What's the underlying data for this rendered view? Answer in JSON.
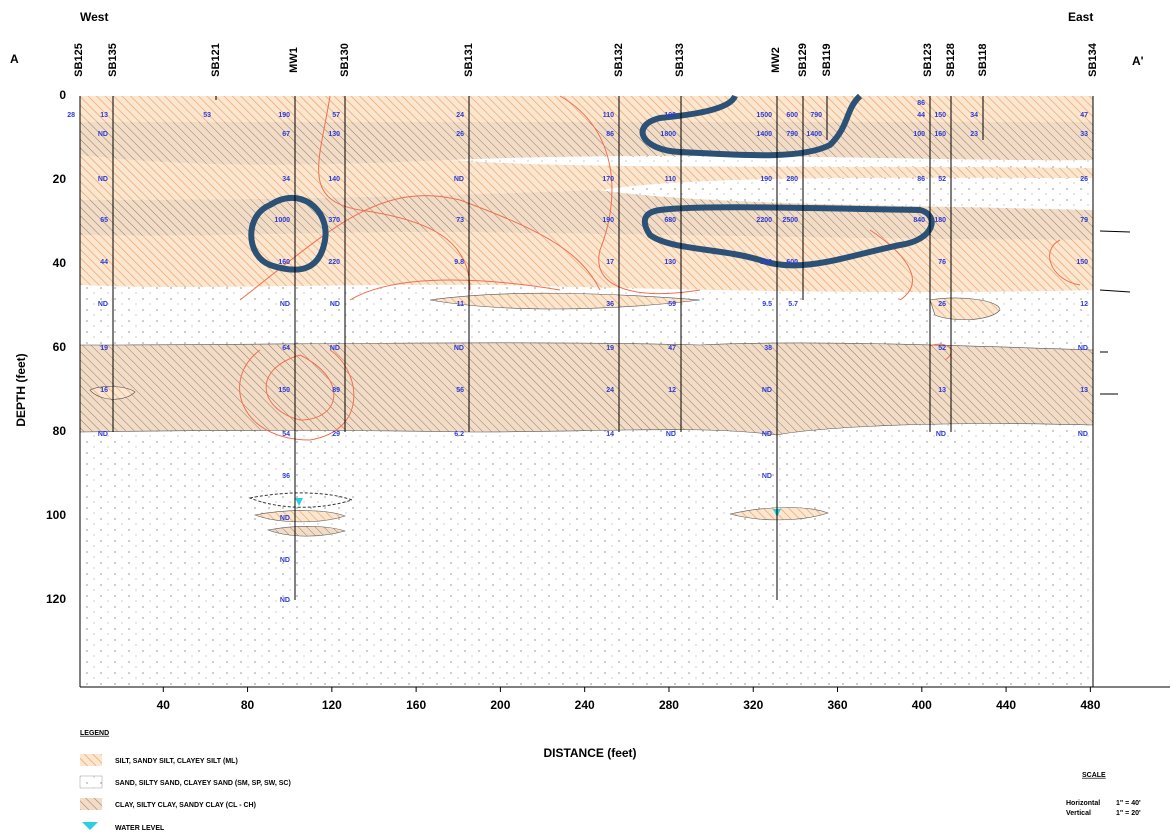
{
  "header": {
    "west": "West",
    "east": "East",
    "a": "A",
    "a_prime": "A'"
  },
  "axes": {
    "y_label": "DEPTH (feet)",
    "x_label": "DISTANCE (feet)",
    "yticks": [
      0,
      20,
      40,
      60,
      80,
      100,
      120
    ],
    "xticks": [
      40,
      80,
      120,
      160,
      200,
      240,
      280,
      320,
      360,
      400,
      440,
      480
    ]
  },
  "borings": [
    {
      "name": "SB125",
      "labels": [
        null,
        "28",
        null,
        null,
        null,
        null,
        null,
        null,
        null,
        null,
        null,
        null,
        null,
        null
      ]
    },
    {
      "name": "SB135",
      "labels": [
        null,
        "13",
        "ND",
        "ND",
        "65",
        "44",
        "ND",
        "19",
        "16",
        "ND",
        null,
        null,
        null,
        null
      ]
    },
    {
      "name": "SB121",
      "labels": [
        null,
        "53",
        null,
        null,
        null,
        null,
        null,
        null,
        null,
        null,
        null,
        null,
        null,
        null
      ]
    },
    {
      "name": "MW1",
      "labels": [
        null,
        "190",
        "67",
        "34",
        "1000",
        "160",
        "ND",
        "64",
        "150",
        "54",
        "36",
        "ND",
        "ND",
        "ND"
      ]
    },
    {
      "name": "SB130",
      "labels": [
        null,
        "57",
        "130",
        "140",
        "370",
        "220",
        "ND",
        "ND",
        "89",
        "29",
        null,
        null,
        null,
        null
      ]
    },
    {
      "name": "SB131",
      "labels": [
        null,
        "24",
        "26",
        "ND",
        "73",
        "9.8",
        "11",
        "ND",
        "56",
        "6.2",
        null,
        null,
        null,
        null
      ]
    },
    {
      "name": "SB132",
      "labels": [
        null,
        "110",
        "86",
        "170",
        "190",
        "17",
        "36",
        "19",
        "24",
        "14",
        null,
        null,
        null,
        null
      ]
    },
    {
      "name": "SB133",
      "labels": [
        null,
        "190",
        "1800",
        "110",
        "680",
        "130",
        "59",
        "47",
        "12",
        "ND",
        null,
        null,
        null,
        null
      ]
    },
    {
      "name": "MW2",
      "labels": [
        null,
        "1500",
        "1400",
        "190",
        "2200",
        "290",
        "9.5",
        "38",
        "ND",
        "ND",
        "ND",
        null,
        null,
        null
      ]
    },
    {
      "name": "SB129",
      "labels": [
        null,
        "600",
        "790",
        "280",
        "2500",
        "600",
        "5.7",
        null,
        null,
        null,
        null,
        null,
        null,
        null
      ]
    },
    {
      "name": "SB119",
      "labels": [
        null,
        "790",
        "1400",
        null,
        null,
        null,
        null,
        null,
        null,
        null,
        null,
        null,
        null,
        null
      ]
    },
    {
      "name": "SB123",
      "labels": [
        "86",
        "44",
        "100",
        "86",
        "840",
        null,
        null,
        null,
        null,
        null,
        null,
        null,
        null,
        null
      ]
    },
    {
      "name": "SB128",
      "labels": [
        null,
        "150",
        "160",
        "52",
        "180",
        "76",
        "26",
        "52",
        "13",
        "ND",
        null,
        null,
        null,
        null
      ]
    },
    {
      "name": "SB118",
      "labels": [
        null,
        "34",
        "23",
        null,
        null,
        null,
        null,
        null,
        null,
        null,
        null,
        null,
        null,
        null
      ]
    },
    {
      "name": "SB134",
      "labels": [
        null,
        "47",
        "33",
        "26",
        "79",
        "150",
        "12",
        "ND",
        "13",
        "ND",
        null,
        null,
        null,
        null
      ]
    }
  ],
  "legend": {
    "title": "LEGEND",
    "items": [
      "SILT, SANDY SILT, CLAYEY SILT (ML)",
      "SAND, SILTY SAND, CLAYEY SAND (SM, SP, SW, SC)",
      "CLAY, SILTY CLAY, SANDY CLAY (CL - CH)",
      "WATER LEVEL"
    ]
  },
  "scale": {
    "title": "SCALE",
    "horizontal_label": "Horizontal",
    "horizontal_value": "1\" = 40'",
    "vertical_label": "Vertical",
    "vertical_value": "1\" = 20'"
  }
}
